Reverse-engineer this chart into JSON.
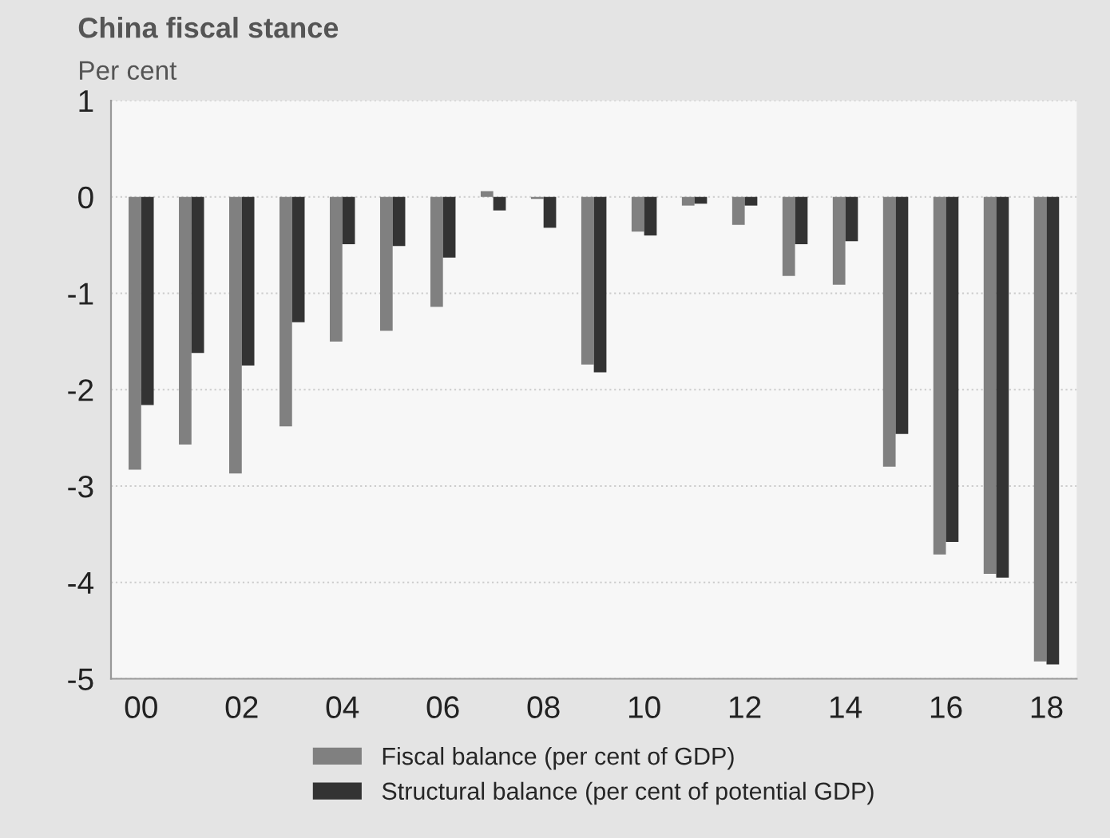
{
  "chart_data": {
    "type": "bar",
    "title": "China fiscal stance",
    "subtitle": "Per cent",
    "categories": [
      "00",
      null,
      "02",
      null,
      "04",
      null,
      "06",
      null,
      "08",
      null,
      "10",
      null,
      "12",
      null,
      "14",
      null,
      "16",
      null,
      "18"
    ],
    "series": [
      {
        "name": "Fiscal balance (per cent of GDP)",
        "color": "#808080",
        "values": [
          -2.83,
          -2.57,
          -2.87,
          -2.38,
          -1.5,
          -1.39,
          -1.14,
          0.06,
          -0.02,
          -1.74,
          -0.36,
          -0.09,
          -0.29,
          -0.82,
          -0.91,
          -2.8,
          -3.71,
          -3.91,
          -4.82
        ]
      },
      {
        "name": "Structural balance (per cent of potential GDP)",
        "color": "#333333",
        "values": [
          -2.16,
          -1.62,
          -1.75,
          -1.3,
          -0.49,
          -0.51,
          -0.63,
          -0.14,
          -0.32,
          -1.82,
          -0.4,
          -0.07,
          -0.09,
          -0.49,
          -0.46,
          -2.46,
          -3.58,
          -3.95,
          -4.85
        ]
      }
    ],
    "ylim": [
      -5,
      1
    ],
    "yticks": [
      -5,
      -4,
      -3,
      -2,
      -1,
      0,
      1
    ],
    "grid": "y",
    "legend": "bottom"
  }
}
